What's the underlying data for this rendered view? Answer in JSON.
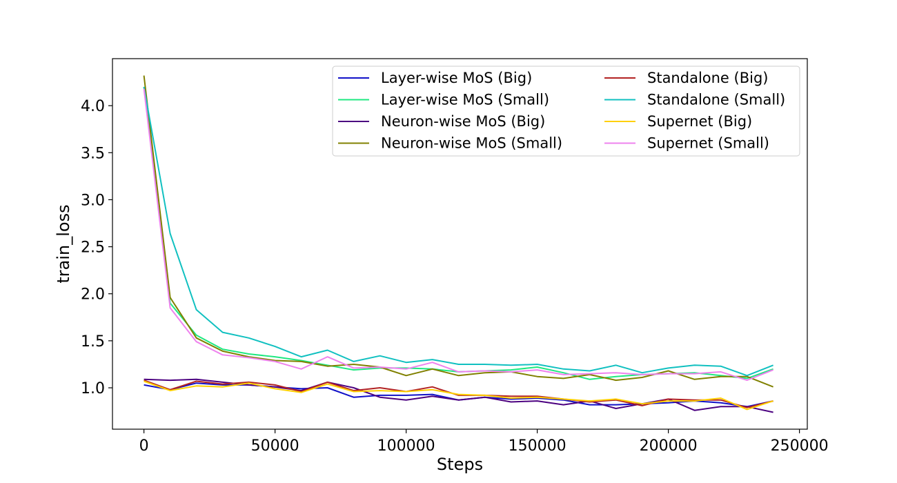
{
  "chart_data": {
    "type": "line",
    "title": "",
    "xlabel": "Steps",
    "ylabel": "train_loss",
    "xlim": [
      -12000,
      253000
    ],
    "ylim": [
      0.56,
      4.5
    ],
    "xticks": [
      0,
      50000,
      100000,
      150000,
      200000,
      250000
    ],
    "xtick_labels": [
      "0",
      "50000",
      "100000",
      "150000",
      "200000",
      "250000"
    ],
    "yticks": [
      1.0,
      1.5,
      2.0,
      2.5,
      3.0,
      3.5,
      4.0
    ],
    "ytick_labels": [
      "1.0",
      "1.5",
      "2.0",
      "2.5",
      "3.0",
      "3.5",
      "4.0"
    ],
    "grid": false,
    "legend": {
      "placement": "top-right",
      "columns": 2
    },
    "x": [
      0,
      10000,
      20000,
      30000,
      40000,
      50000,
      60000,
      70000,
      80000,
      90000,
      100000,
      110000,
      120000,
      130000,
      140000,
      150000,
      160000,
      170000,
      180000,
      190000,
      200000,
      210000,
      220000,
      230000,
      240000
    ],
    "series": [
      {
        "name": "Layer-wise MoS (Big)",
        "color": "#1010c8",
        "values": [
          1.03,
          0.98,
          1.05,
          1.03,
          1.03,
          1.01,
          0.99,
          1.0,
          0.9,
          0.92,
          0.92,
          0.93,
          0.87,
          0.9,
          0.88,
          0.89,
          0.87,
          0.82,
          0.82,
          0.83,
          0.84,
          0.86,
          0.84,
          0.8,
          0.86
        ]
      },
      {
        "name": "Layer-wise MoS (Small)",
        "color": "#1ee880",
        "values": [
          4.2,
          1.9,
          1.56,
          1.41,
          1.36,
          1.33,
          1.29,
          1.24,
          1.19,
          1.21,
          1.21,
          1.2,
          1.17,
          1.18,
          1.19,
          1.22,
          1.16,
          1.09,
          1.12,
          1.14,
          1.15,
          1.16,
          1.13,
          1.1,
          1.2
        ]
      },
      {
        "name": "Neuron-wise MoS (Big)",
        "color": "#4b0080",
        "values": [
          1.09,
          1.08,
          1.09,
          1.06,
          1.03,
          1.01,
          0.97,
          1.06,
          1.0,
          0.9,
          0.87,
          0.91,
          0.87,
          0.9,
          0.85,
          0.86,
          0.82,
          0.86,
          0.78,
          0.83,
          0.88,
          0.76,
          0.8,
          0.8,
          0.74
        ]
      },
      {
        "name": "Neuron-wise MoS (Small)",
        "color": "#808000",
        "values": [
          4.32,
          1.96,
          1.53,
          1.39,
          1.33,
          1.29,
          1.28,
          1.23,
          1.25,
          1.22,
          1.13,
          1.2,
          1.13,
          1.16,
          1.17,
          1.12,
          1.1,
          1.14,
          1.08,
          1.11,
          1.18,
          1.09,
          1.12,
          1.12,
          1.01
        ]
      },
      {
        "name": "Standalone (Big)",
        "color": "#b22222",
        "values": [
          1.08,
          0.98,
          1.07,
          1.04,
          1.06,
          1.03,
          0.96,
          1.06,
          0.97,
          1.0,
          0.96,
          1.01,
          0.92,
          0.92,
          0.91,
          0.91,
          0.88,
          0.85,
          0.87,
          0.81,
          0.88,
          0.87,
          0.87,
          0.79,
          0.86
        ]
      },
      {
        "name": "Standalone (Small)",
        "color": "#10c0c0",
        "values": [
          4.2,
          2.64,
          1.83,
          1.59,
          1.53,
          1.44,
          1.33,
          1.4,
          1.28,
          1.34,
          1.27,
          1.3,
          1.25,
          1.25,
          1.24,
          1.25,
          1.2,
          1.18,
          1.24,
          1.16,
          1.21,
          1.24,
          1.23,
          1.13,
          1.24
        ]
      },
      {
        "name": "Supernet (Big)",
        "color": "#ffd000",
        "values": [
          1.07,
          0.97,
          1.02,
          1.01,
          1.05,
          0.99,
          0.95,
          1.04,
          0.96,
          0.97,
          0.96,
          0.98,
          0.93,
          0.92,
          0.89,
          0.9,
          0.88,
          0.86,
          0.88,
          0.83,
          0.86,
          0.86,
          0.89,
          0.77,
          0.86
        ]
      },
      {
        "name": "Supernet (Small)",
        "color": "#ee82ee",
        "values": [
          4.18,
          1.85,
          1.49,
          1.35,
          1.32,
          1.28,
          1.2,
          1.33,
          1.21,
          1.22,
          1.2,
          1.27,
          1.17,
          1.18,
          1.17,
          1.19,
          1.14,
          1.15,
          1.16,
          1.14,
          1.15,
          1.15,
          1.17,
          1.08,
          1.19
        ]
      }
    ]
  }
}
